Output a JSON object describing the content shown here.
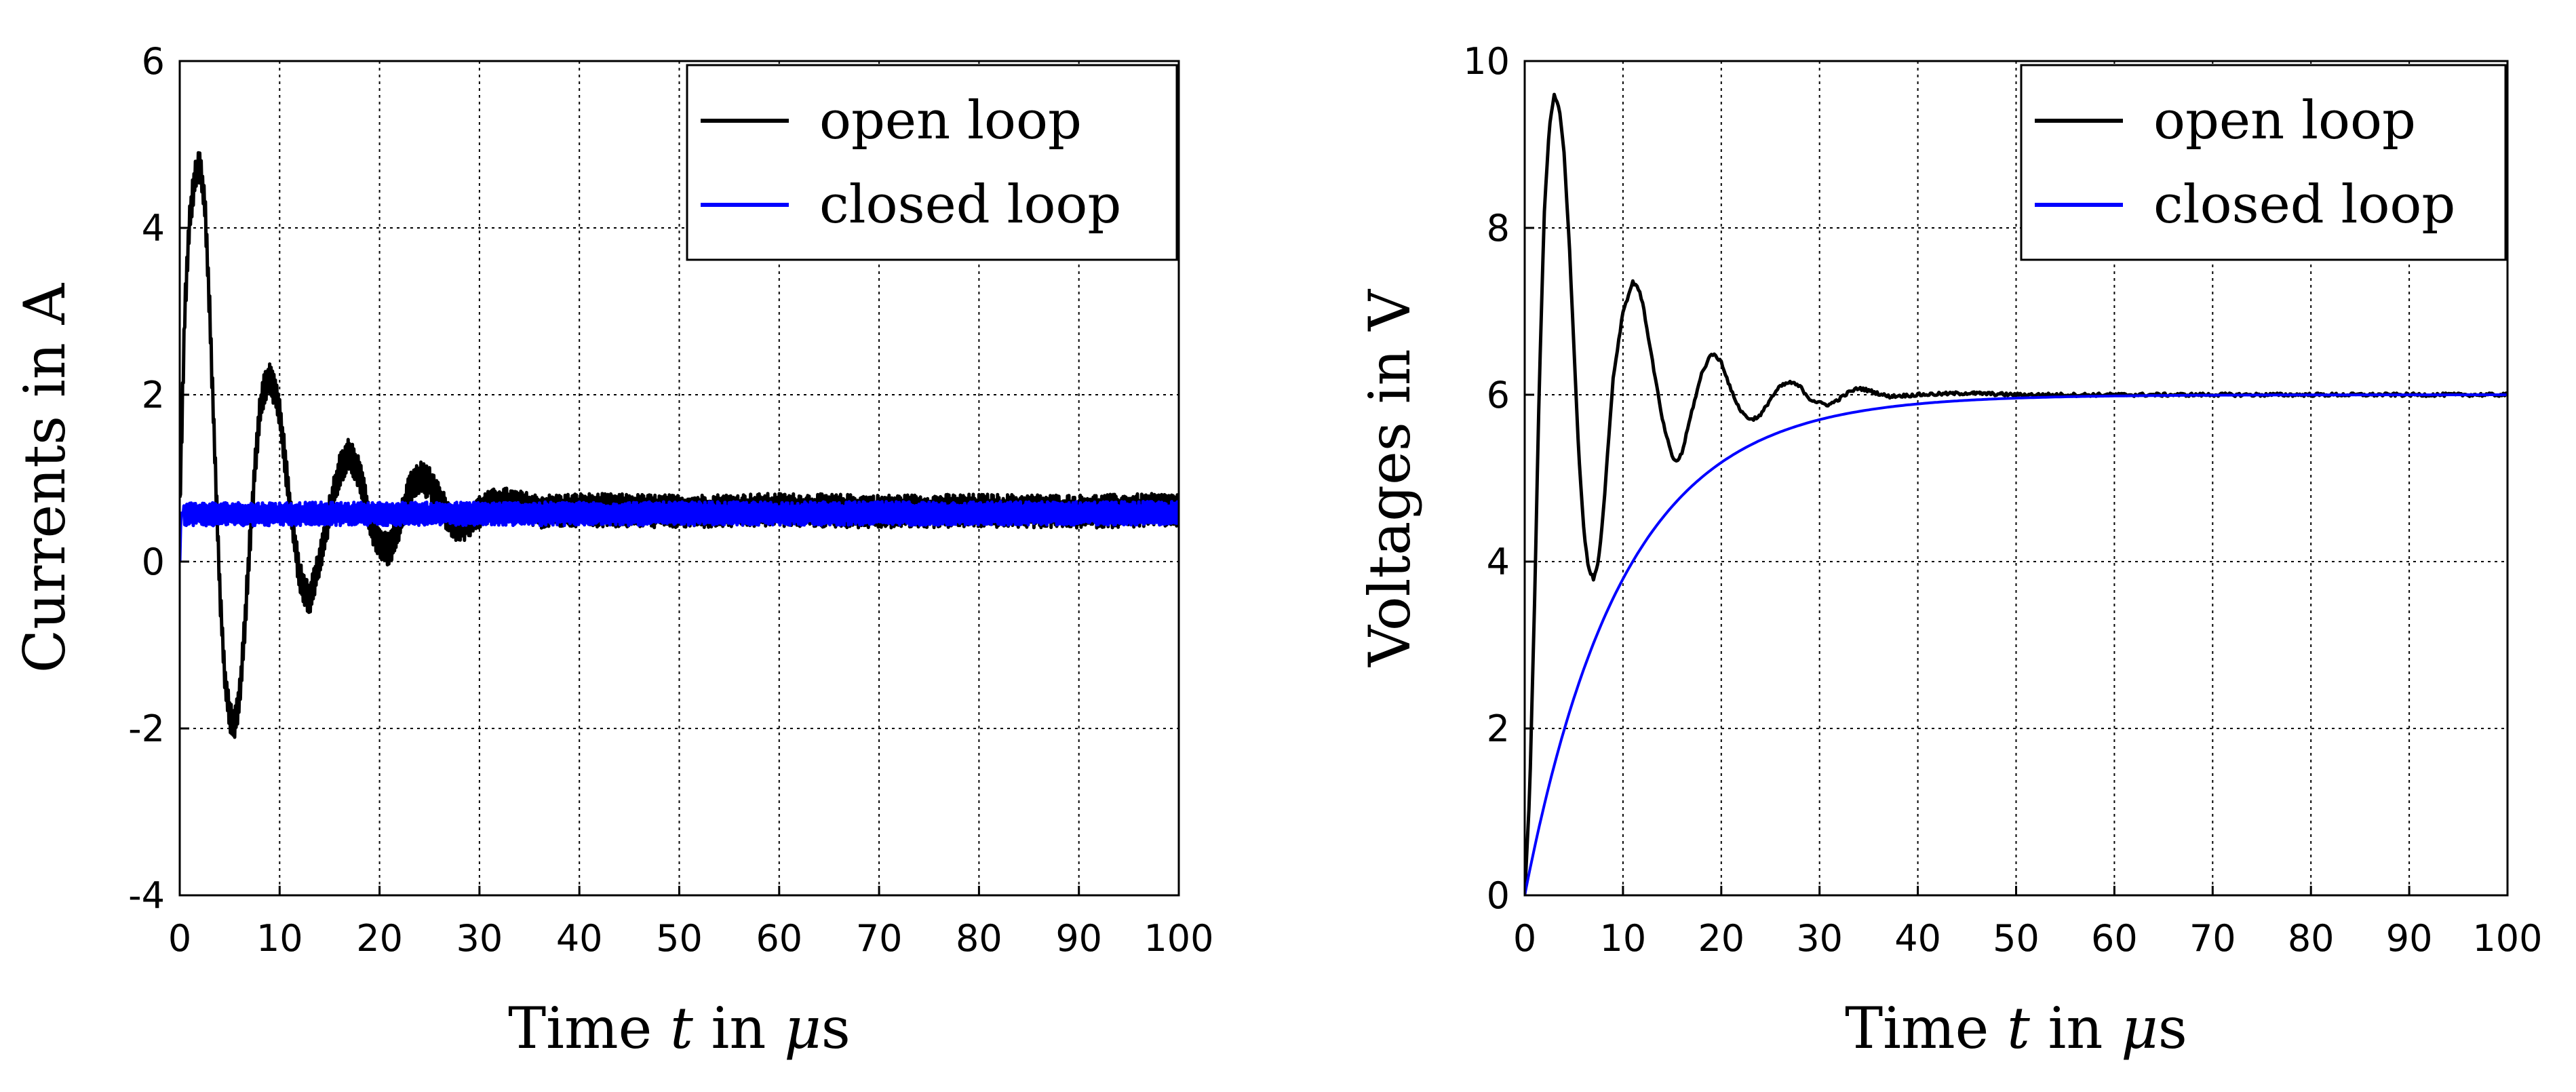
{
  "chart_data": [
    {
      "type": "line",
      "xlabel_parts": [
        "Time ",
        "t",
        " in ",
        "μ",
        "s"
      ],
      "ylabel": "Currents in A",
      "xlim": [
        0,
        100
      ],
      "ylim": [
        -4,
        6
      ],
      "xticks": [
        "0",
        "10",
        "20",
        "30",
        "40",
        "50",
        "60",
        "70",
        "80",
        "90",
        "100"
      ],
      "yticks": [
        "-4",
        "-2",
        "0",
        "2",
        "4",
        "6"
      ],
      "grid": true,
      "legend_position": "top-right",
      "series": [
        {
          "name": "open loop",
          "color": "#000000",
          "style": "noisy-band",
          "x": [
            0,
            0.5,
            1,
            1.5,
            2,
            2.5,
            3,
            3.5,
            4,
            4.5,
            5,
            5.5,
            6,
            6.5,
            7,
            7.5,
            8,
            8.5,
            9,
            9.5,
            10,
            11,
            12,
            13,
            14,
            15,
            16,
            17,
            18,
            19,
            20,
            21,
            22,
            23,
            24,
            25,
            26,
            27,
            28,
            29,
            30,
            32,
            34,
            36,
            40,
            50,
            60,
            70,
            80,
            90,
            100
          ],
          "y": [
            0.6,
            3.0,
            4.1,
            4.6,
            4.75,
            4.3,
            3.0,
            1.3,
            -0.3,
            -1.4,
            -1.85,
            -1.95,
            -1.6,
            -0.8,
            0.2,
            1.1,
            1.8,
            2.1,
            2.2,
            2.05,
            1.8,
            0.7,
            -0.2,
            -0.45,
            0.0,
            0.6,
            1.1,
            1.3,
            1.05,
            0.5,
            0.2,
            0.15,
            0.45,
            0.85,
            1.0,
            0.95,
            0.75,
            0.5,
            0.4,
            0.5,
            0.6,
            0.7,
            0.65,
            0.6,
            0.62,
            0.6,
            0.62,
            0.6,
            0.61,
            0.6,
            0.62
          ],
          "noise_amplitude": 0.2
        },
        {
          "name": "closed loop",
          "color": "#0000ff",
          "style": "noisy-band",
          "x": [
            0,
            0.1,
            1,
            100
          ],
          "y": [
            0,
            0.58,
            0.57,
            0.58
          ],
          "noise_amplitude": 0.14
        }
      ]
    },
    {
      "type": "line",
      "xlabel_parts": [
        "Time ",
        "t",
        " in ",
        "μ",
        "s"
      ],
      "ylabel": "Voltages in V",
      "xlim": [
        0,
        100
      ],
      "ylim": [
        0,
        10
      ],
      "xticks": [
        "0",
        "10",
        "20",
        "30",
        "40",
        "50",
        "60",
        "70",
        "80",
        "90",
        "100"
      ],
      "yticks": [
        "0",
        "2",
        "4",
        "6",
        "8",
        "10"
      ],
      "grid": true,
      "legend_position": "top-right",
      "series": [
        {
          "name": "open loop",
          "color": "#000000",
          "style": "line",
          "x": [
            0,
            0.5,
            1,
            1.5,
            2,
            2.5,
            3,
            3.5,
            4,
            4.5,
            5,
            5.5,
            6,
            6.5,
            7,
            7.5,
            8,
            8.5,
            9,
            10,
            11,
            11.5,
            12,
            13,
            14,
            15,
            15.5,
            16,
            17,
            18,
            19,
            20,
            21,
            22,
            23,
            24,
            25,
            26,
            27,
            28,
            29,
            30,
            31,
            32,
            33,
            34,
            35,
            37,
            40,
            45,
            50,
            60,
            70,
            80,
            90,
            100
          ],
          "y": [
            0,
            1.2,
            3.5,
            6.2,
            8.2,
            9.2,
            9.6,
            9.45,
            8.9,
            7.9,
            6.6,
            5.3,
            4.4,
            3.9,
            3.8,
            4.0,
            4.6,
            5.4,
            6.2,
            7.0,
            7.35,
            7.3,
            7.1,
            6.4,
            5.7,
            5.25,
            5.2,
            5.3,
            5.8,
            6.25,
            6.5,
            6.4,
            6.05,
            5.8,
            5.7,
            5.75,
            5.95,
            6.1,
            6.15,
            6.1,
            5.95,
            5.9,
            5.88,
            5.95,
            6.03,
            6.08,
            6.05,
            5.98,
            6.0,
            6.02,
            6.0,
            6.0,
            6.0,
            6.0,
            6.0,
            6.0
          ],
          "noise_amplitude": 0.02
        },
        {
          "name": "closed loop",
          "color": "#0000ff",
          "style": "exp",
          "final_value": 6.0,
          "time_constant": 10.0
        }
      ]
    }
  ]
}
